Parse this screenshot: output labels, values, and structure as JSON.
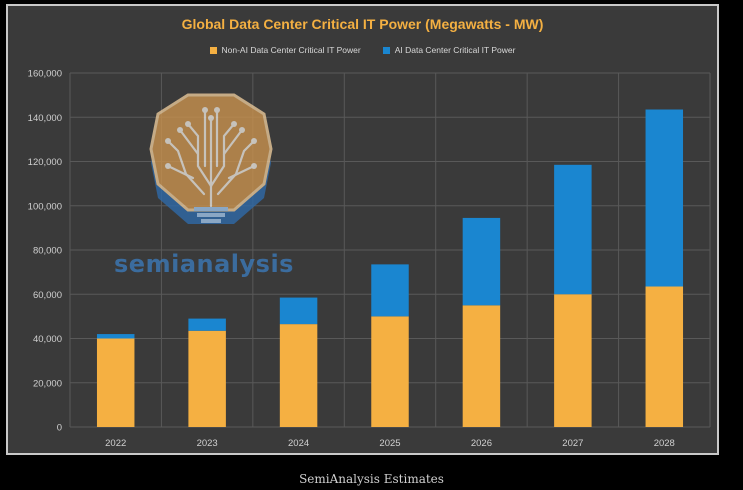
{
  "chart_data": {
    "type": "bar",
    "stacked": true,
    "title": "Global Data Center Critical IT Power (Megawatts - MW)",
    "categories": [
      "2022",
      "2023",
      "2024",
      "2025",
      "2026",
      "2027",
      "2028"
    ],
    "series": [
      {
        "name": "Non-AI Data Center Critical IT Power",
        "color": "#f5b042",
        "values": [
          40000,
          43500,
          46500,
          50000,
          55000,
          60000,
          63500
        ]
      },
      {
        "name": "AI Data Center Critical IT Power",
        "color": "#1a86d0",
        "values": [
          2000,
          5500,
          12000,
          23500,
          39500,
          58500,
          80000
        ]
      }
    ],
    "ylim": [
      0,
      160000
    ],
    "yticks": [
      "0",
      "20,000",
      "40,000",
      "60,000",
      "80,000",
      "100,000",
      "120,000",
      "140,000",
      "160,000"
    ],
    "xlabel": "",
    "ylabel": "",
    "grid": true,
    "legend_position": "top"
  },
  "watermark": {
    "text": "semianalysis"
  },
  "caption": "SemiAnalysis Estimates",
  "colors": {
    "background": "#3a3a3a",
    "grid": "#595959",
    "axis_text": "#d0d0d0",
    "title": "#f4b042"
  }
}
